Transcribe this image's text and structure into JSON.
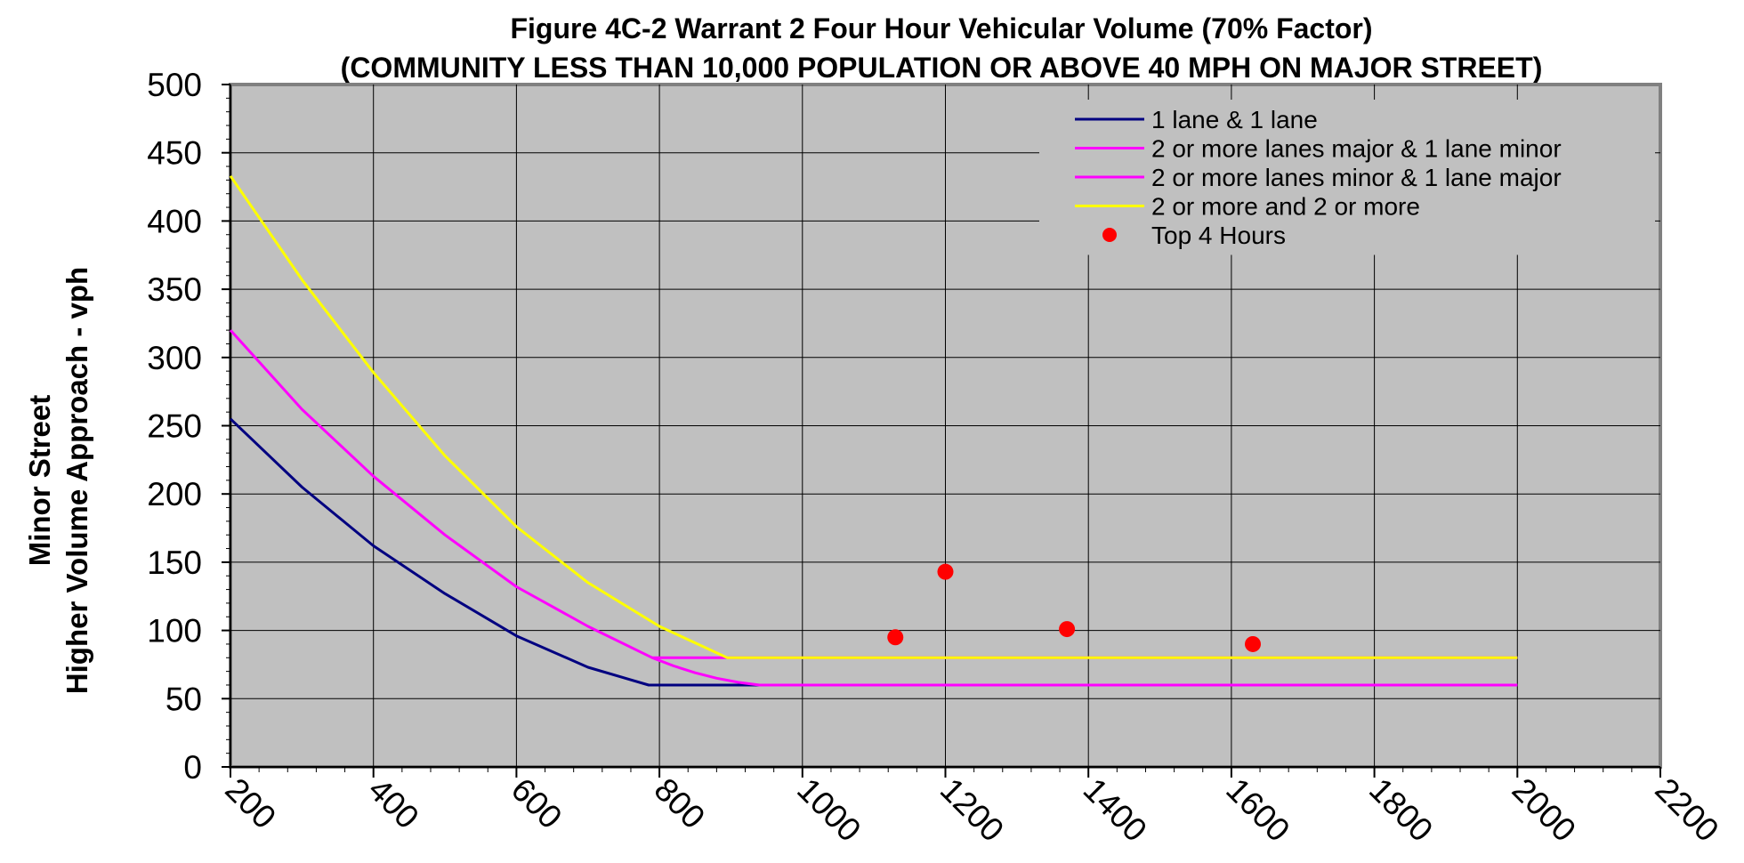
{
  "chart_data": {
    "type": "line",
    "title": "Figure 4C-2 Warrant 2 Four Hour Vehicular Volume (70% Factor)",
    "subtitle": "(COMMUNITY LESS THAN 10,000 POPULATION OR ABOVE 40 MPH ON MAJOR STREET)",
    "xlabel": "",
    "ylabel_lines": [
      "Minor Street",
      "Higher Volume Approach - vph"
    ],
    "xlim": [
      200,
      2200
    ],
    "ylim": [
      0,
      500
    ],
    "x_ticks": [
      200,
      400,
      600,
      800,
      1000,
      1200,
      1400,
      1600,
      1800,
      2000,
      2200
    ],
    "y_ticks": [
      0,
      50,
      100,
      150,
      200,
      250,
      300,
      350,
      400,
      450,
      500
    ],
    "grid": true,
    "legend_position": "top-right",
    "plot_background": "#c0c0c0",
    "series": [
      {
        "name": "1 lane & 1 lane",
        "kind": "line",
        "color": "#000080",
        "x": [
          200,
          300,
          400,
          500,
          600,
          700,
          785,
          800,
          900,
          1000,
          2000
        ],
        "y": [
          255,
          205,
          162,
          127,
          96,
          73,
          60,
          60,
          60,
          60,
          60
        ]
      },
      {
        "name": "2 or more lanes major & 1 lane minor",
        "kind": "line",
        "color": "#ff00ff",
        "x": [
          200,
          300,
          400,
          500,
          600,
          700,
          790,
          900,
          2000
        ],
        "y": [
          320,
          262,
          213,
          170,
          132,
          103,
          80,
          80,
          80
        ]
      },
      {
        "name": "2 or more lanes minor & 1 lane major",
        "kind": "line",
        "color": "#ff00ff",
        "x": [
          790,
          820,
          850,
          880,
          910,
          940,
          1000,
          2000
        ],
        "y": [
          80,
          74,
          69,
          65,
          62,
          60,
          60,
          60
        ]
      },
      {
        "name": "2 or more and 2 or more",
        "kind": "line",
        "color": "#ffff00",
        "x": [
          200,
          300,
          400,
          500,
          600,
          700,
          800,
          895,
          1000,
          2000
        ],
        "y": [
          433,
          357,
          289,
          228,
          176,
          135,
          103,
          80,
          80,
          80
        ]
      },
      {
        "name": "Top 4 Hours",
        "kind": "scatter",
        "color": "#ff0000",
        "x": [
          1130,
          1200,
          1370,
          1630
        ],
        "y": [
          95,
          143,
          101,
          90
        ]
      }
    ]
  }
}
